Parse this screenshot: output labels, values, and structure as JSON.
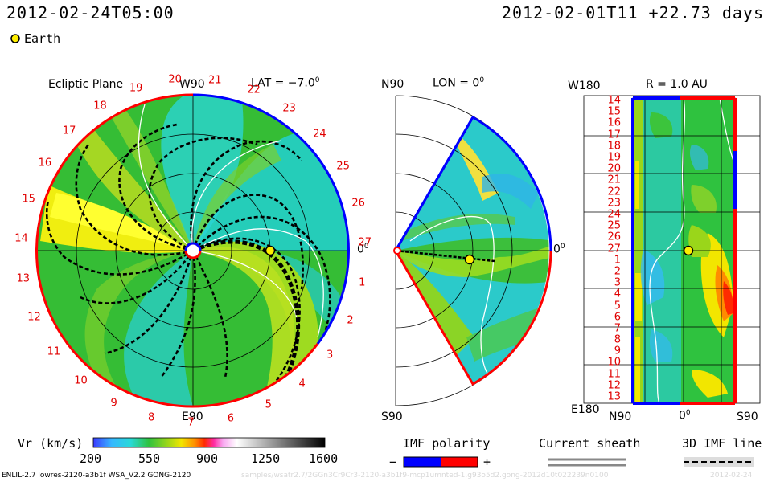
{
  "header": {
    "left_time": "2012-02-24T05:00",
    "right_time": "2012-02-01T11 +22.73 days"
  },
  "legend": {
    "earth_label": "Earth"
  },
  "panels": {
    "ecliptic": {
      "title": "Ecliptic Plane",
      "lat_label": "LAT = −7.0",
      "top_label": "W90",
      "bottom_label": "E90",
      "right_label": "0",
      "carrington_ticks": [
        "20",
        "21",
        "22",
        "23",
        "24",
        "25",
        "26",
        "27",
        "1",
        "2",
        "3",
        "4",
        "5",
        "6",
        "7",
        "8",
        "9",
        "10",
        "11",
        "12",
        "13",
        "14",
        "15",
        "16",
        "17",
        "18",
        "19"
      ]
    },
    "meridional": {
      "lon_label": "LON = 0",
      "top_label": "N90",
      "bottom_label": "S90",
      "right_label": "0"
    },
    "radial": {
      "title": "R = 1.0 AU",
      "top_left_label": "W180",
      "bottom_left_label": "E180",
      "bottom_ticks": [
        "N90",
        "0",
        "S90"
      ],
      "y_ticks": [
        "14",
        "15",
        "16",
        "17",
        "18",
        "19",
        "20",
        "21",
        "22",
        "23",
        "24",
        "25",
        "26",
        "27",
        "1",
        "2",
        "3",
        "4",
        "5",
        "6",
        "7",
        "8",
        "9",
        "10",
        "11",
        "12",
        "13"
      ]
    }
  },
  "colorbar": {
    "label": "Vr (km/s)",
    "ticks": [
      "200",
      "550",
      "900",
      "1250",
      "1600"
    ]
  },
  "imf": {
    "label": "IMF polarity",
    "minus": "−",
    "plus": "+",
    "neg_color": "#0000ff",
    "pos_color": "#ff0000"
  },
  "sheath": {
    "label": "Current sheath"
  },
  "imf3d": {
    "label": "3D IMF line"
  },
  "footer": {
    "left": "ENLIL-2.7 lowres-2120-a3b1f WSA_V2.2 GONG-2120",
    "middle": "samples/wsatr2.7/2GGn3Cr9Cr3-2120-a3b1f9-mcp1umnted-1.g93o5d2.gong-2012d10t022239n0100",
    "right": "2012-02-24"
  },
  "chart_data": {
    "type": "heatmap",
    "title": "Ecliptic Plane",
    "variable": "Vr (km/s)",
    "color_range": [
      200,
      1600
    ],
    "earth": {
      "lat_deg": -7.0,
      "lon_deg": 0,
      "r_au": 1.0
    },
    "panels": [
      "Ecliptic Plane",
      "LON = 0",
      "R = 1.0 AU"
    ]
  }
}
